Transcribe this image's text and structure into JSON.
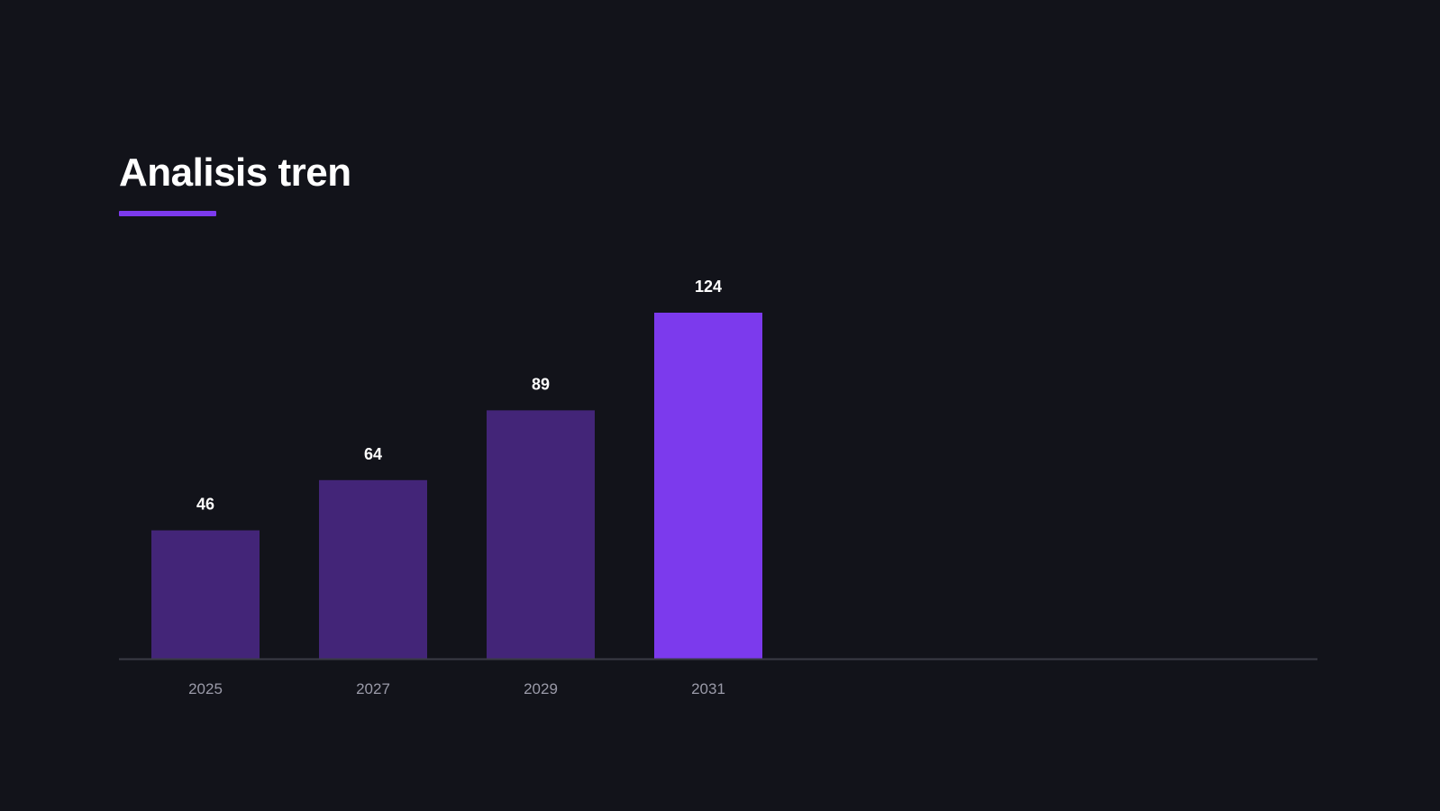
{
  "header": {
    "title": "Analisis tren"
  },
  "colors": {
    "background": "#12131a",
    "accent": "#7c3aed",
    "bar": "#432578",
    "baseline": "#3a3b45"
  },
  "chart_data": {
    "type": "bar",
    "categories": [
      "2025",
      "2027",
      "2029",
      "2031"
    ],
    "values": [
      46,
      64,
      89,
      124
    ],
    "highlight_index": 3,
    "ylim": [
      0,
      124
    ],
    "grid": false,
    "legend": "none",
    "data_labels": true
  }
}
